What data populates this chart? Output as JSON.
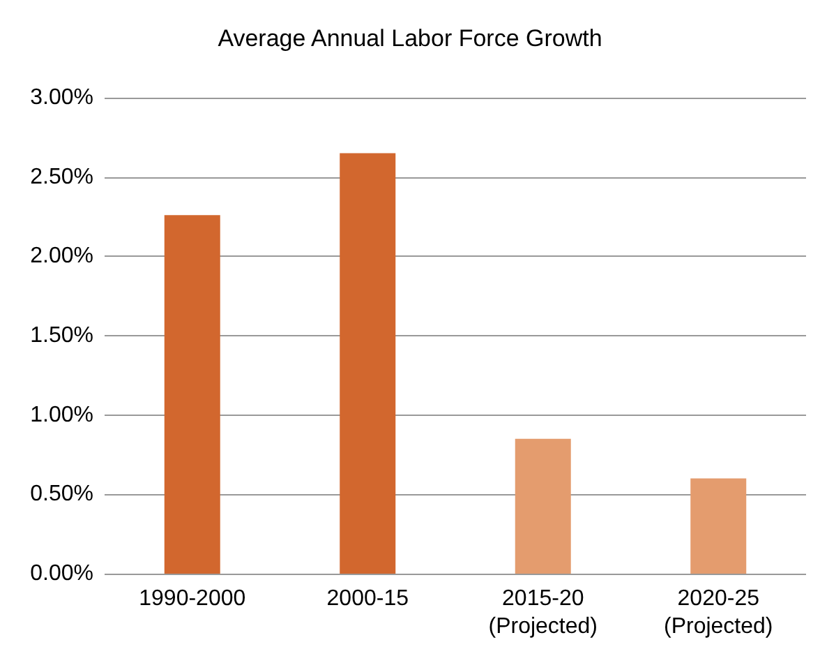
{
  "chart_data": {
    "type": "bar",
    "title": "Average Annual Labor Force Growth",
    "categories": [
      "1990-2000",
      "2000-15",
      "2015-20\n(Projected)",
      "2020-25\n(Projected)"
    ],
    "values": [
      2.26,
      2.65,
      0.85,
      0.6
    ],
    "colors": [
      "#d2672e",
      "#d2672e",
      "#e49c6e",
      "#e49c6e"
    ],
    "ylim": [
      0,
      3
    ],
    "yticks": [
      {
        "value": 0,
        "label": "0.00%"
      },
      {
        "value": 0.5,
        "label": "0.50%"
      },
      {
        "value": 1,
        "label": "1.00%"
      },
      {
        "value": 1.5,
        "label": "1.50%"
      },
      {
        "value": 2,
        "label": "2.00%"
      },
      {
        "value": 2.5,
        "label": "2.50%"
      },
      {
        "value": 3,
        "label": "3.00%"
      }
    ],
    "grid": "y"
  }
}
